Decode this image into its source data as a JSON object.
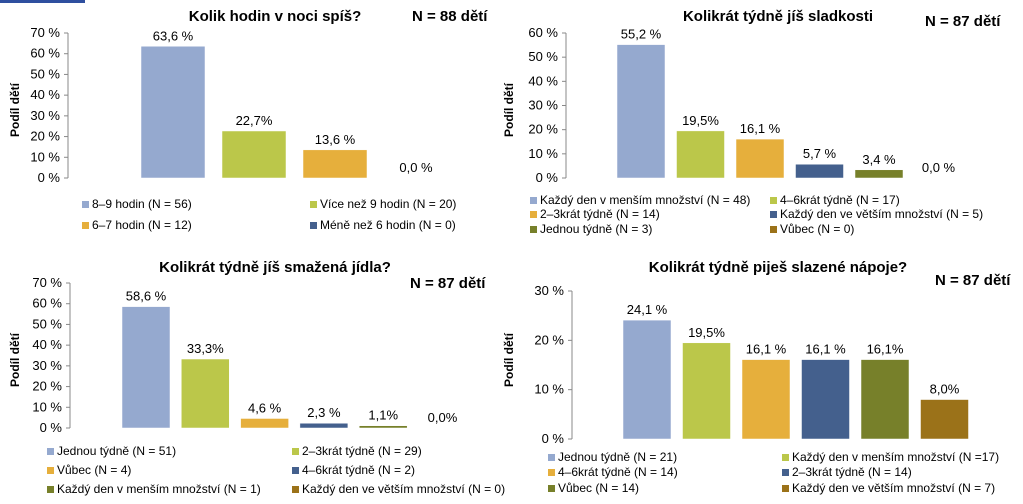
{
  "colors": {
    "blue": "#95A9CF",
    "green": "#BBC74A",
    "orange": "#E6AF3C",
    "navy": "#44608D",
    "olive": "#77802A",
    "brown": "#9B7219"
  },
  "chart_data": [
    {
      "type": "bar",
      "title": "Kolik hodin v noci spíš?",
      "n_label": "N = 88 dětí",
      "ylabel": "Podíl dětí",
      "ylim": [
        0,
        70
      ],
      "yticks": [
        "0 %",
        "10 %",
        "20 %",
        "30 %",
        "40 %",
        "50 %",
        "60 %",
        "70 %"
      ],
      "categories": [
        "8–9 hodin (N = 56)",
        "Více než 9 hodin (N = 20)",
        "6–7 hodin (N = 12)",
        "Méně než 6 hodin (N = 0)"
      ],
      "values": [
        63.6,
        22.7,
        13.6,
        0.0
      ],
      "data_labels": [
        "63,6 %",
        "22,7%",
        "13,6 %",
        "0,0 %"
      ],
      "colors": [
        "#95A9CF",
        "#BBC74A",
        "#E6AF3C",
        "#44608D"
      ],
      "legend": "bottom"
    },
    {
      "type": "bar",
      "title": "Kolikrát týdně jíš sladkosti",
      "n_label": "N = 87 dětí",
      "ylabel": "Podíl dětí",
      "ylim": [
        0,
        60
      ],
      "yticks": [
        "0 %",
        "10 %",
        "20 %",
        "30 %",
        "40 %",
        "50 %",
        "60 %"
      ],
      "categories": [
        "Každý den v menším množství (N = 48)",
        "4–6krát týdně (N = 17)",
        "2–3krát týdně (N = 14)",
        "Každý den ve větším množství (N = 5)",
        "Jednou týdně (N = 3)",
        "Vůbec (N = 0)"
      ],
      "values": [
        55.2,
        19.5,
        16.1,
        5.7,
        3.4,
        0.0
      ],
      "data_labels": [
        "55,2 %",
        "19,5%",
        "16,1 %",
        "5,7 %",
        "3,4 %",
        "0,0 %"
      ],
      "colors": [
        "#95A9CF",
        "#BBC74A",
        "#E6AF3C",
        "#44608D",
        "#77802A",
        "#9B7219"
      ],
      "legend": "bottom"
    },
    {
      "type": "bar",
      "title": "Kolikrát týdně jíš smažená jídla?",
      "n_label": "N = 87 dětí",
      "ylabel": "Podíl dětí",
      "ylim": [
        0,
        70
      ],
      "yticks": [
        "0 %",
        "10 %",
        "20 %",
        "30 %",
        "40 %",
        "50 %",
        "60 %",
        "70 %"
      ],
      "categories": [
        "Jednou týdně (N = 51)",
        "2–3krát týdně (N = 29)",
        "Vůbec (N = 4)",
        "4–6krát týdně (N = 2)",
        "Každý den v menším množství (N = 1)",
        "Každý den ve větším množství (N = 0)"
      ],
      "values": [
        58.6,
        33.3,
        4.6,
        2.3,
        1.1,
        0.0
      ],
      "data_labels": [
        "58,6 %",
        "33,3%",
        "4,6 %",
        "2,3 %",
        "1,1%",
        "0,0%"
      ],
      "colors": [
        "#95A9CF",
        "#BBC74A",
        "#E6AF3C",
        "#44608D",
        "#77802A",
        "#9B7219"
      ],
      "legend": "bottom"
    },
    {
      "type": "bar",
      "title": "Kolikrát týdně piješ slazené nápoje?",
      "n_label": "N = 87 dětí",
      "ylabel": "Podíl dětí",
      "ylim": [
        0,
        30
      ],
      "yticks": [
        "0 %",
        "10 %",
        "20 %",
        "30 %"
      ],
      "categories": [
        "Jednou týdně (N = 21)",
        "Každý den v menším množství (N =17)",
        "4–6krát týdně (N = 14)",
        "2–3krát týdně (N = 14)",
        "Vůbec (N = 14)",
        "Každý den ve větším množství (N = 7)"
      ],
      "values": [
        24.1,
        19.5,
        16.1,
        16.1,
        16.1,
        8.0
      ],
      "data_labels": [
        "24,1 %",
        "19,5%",
        "16,1 %",
        "16,1 %",
        "16,1%",
        "8,0%"
      ],
      "colors": [
        "#95A9CF",
        "#BBC74A",
        "#E6AF3C",
        "#44608D",
        "#77802A",
        "#9B7219"
      ],
      "legend": "bottom"
    }
  ]
}
